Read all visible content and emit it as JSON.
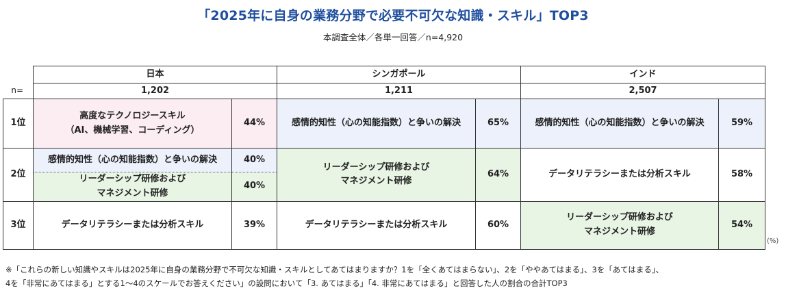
{
  "title": "「2025年に自身の業務分野で必要不可欠な知識・スキル」TOP3",
  "subtitle": "本調査全体／各単一回答／n=4,920",
  "n_label": "n=",
  "countries": [
    {
      "name": "日本",
      "n": "1,202"
    },
    {
      "name": "シンガポール",
      "n": "1,211"
    },
    {
      "name": "インド",
      "n": "2,507"
    }
  ],
  "ranks": [
    "1位",
    "2位",
    "3位"
  ],
  "japan": {
    "r1_line1": "高度なテクノロジースキル",
    "r1_line2": "（AI、機械学習、コーディング）",
    "r1_pct": "44%",
    "r2a_skill": "感情的知性（心の知能指数）と争いの解決",
    "r2a_pct": "40%",
    "r2b_line1": "リーダーシップ研修および",
    "r2b_line2": "マネジメント研修",
    "r2b_pct": "40%",
    "r3_skill": "データリテラシーまたは分析スキル",
    "r3_pct": "39%"
  },
  "singapore": {
    "r1_skill": "感情的知性（心の知能指数）と争いの解決",
    "r1_pct": "65%",
    "r2_line1": "リーダーシップ研修および",
    "r2_line2": "マネジメント研修",
    "r2_pct": "64%",
    "r3_skill": "データリテラシーまたは分析スキル",
    "r3_pct": "60%"
  },
  "india": {
    "r1_skill": "感情的知性（心の知能指数）と争いの解決",
    "r1_pct": "59%",
    "r2_skill": "データリテラシーまたは分析スキル",
    "r2_pct": "58%",
    "r3_line1": "リーダーシップ研修および",
    "r3_line2": "マネジメント研修",
    "r3_pct": "54%"
  },
  "unit": "(%)",
  "footnote_line1": "※「これらの新しい知識やスキルは2025年に自身の業務分野で不可欠な知識・スキルとしてあてはまりますか？1を「全くあてはまらない」、2を「ややあてはまる」、3を「あてはまる」、",
  "footnote_line2": "4を「非常にあてはまる」とする1〜4のスケールでお答えください」の設問において「3. あてはまる」「4. 非常にあてはまる」と回答した人の割合の合計TOP3",
  "colors": {
    "title": "#1f4e9e",
    "pink": "#fcedf2",
    "blue": "#ecf1fb",
    "green": "#e8f4e4"
  }
}
